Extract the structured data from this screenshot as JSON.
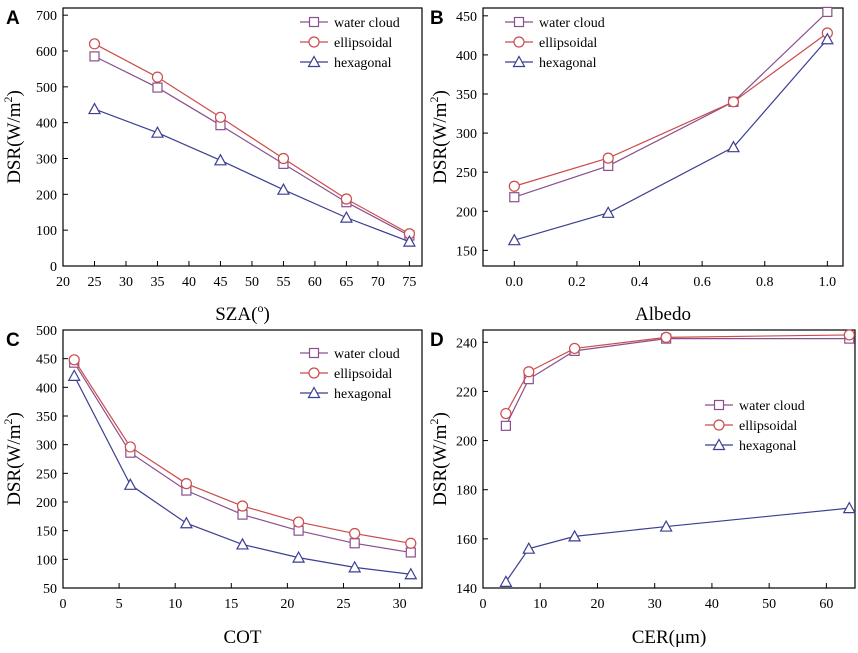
{
  "colors": {
    "water": "#8b4f8e",
    "ellipsoidal": "#cc4b4b",
    "hexagonal": "#3b3f91",
    "axis": "#000000"
  },
  "legend_labels": [
    "water cloud",
    "ellipsoidal",
    "hexagonal"
  ],
  "chart_data": [
    {
      "panel": "A",
      "type": "line",
      "xlabel": "SZA",
      "xlabel_sup": "o",
      "ylabel": "DSR(W/m",
      "ylabel_sup": "2",
      "xlim": [
        20,
        77
      ],
      "ylim": [
        0,
        720
      ],
      "xticks": [
        20,
        25,
        30,
        35,
        40,
        45,
        50,
        55,
        60,
        65,
        70,
        75
      ],
      "yticks": [
        0,
        100,
        200,
        300,
        400,
        500,
        600,
        700
      ],
      "legend_position": "top-right",
      "x": [
        25,
        35,
        45,
        55,
        65,
        75
      ],
      "series": [
        {
          "name": "water cloud",
          "marker": "square",
          "values": [
            585,
            498,
            393,
            285,
            178,
            85
          ]
        },
        {
          "name": "ellipsoidal",
          "marker": "circle",
          "values": [
            620,
            527,
            415,
            300,
            187,
            90
          ]
        },
        {
          "name": "hexagonal",
          "marker": "triangle",
          "values": [
            438,
            372,
            295,
            213,
            135,
            68
          ]
        }
      ]
    },
    {
      "panel": "B",
      "type": "line",
      "xlabel": "Albedo",
      "ylabel": "DSR(W/m",
      "ylabel_sup": "2",
      "xlim": [
        -0.1,
        1.05
      ],
      "ylim": [
        130,
        460
      ],
      "xticks": [
        0.0,
        0.2,
        0.4,
        0.6,
        0.8,
        1.0
      ],
      "xtick_labels": [
        "0.0",
        "0.2",
        "0.4",
        "0.6",
        "0.8",
        "1.0"
      ],
      "yticks": [
        150,
        200,
        250,
        300,
        350,
        400,
        450
      ],
      "legend_position": "top-left",
      "x": [
        0.0,
        0.3,
        0.7,
        1.0
      ],
      "series": [
        {
          "name": "water cloud",
          "marker": "square",
          "values": [
            218,
            258,
            340,
            455
          ]
        },
        {
          "name": "ellipsoidal",
          "marker": "circle",
          "values": [
            232,
            268,
            340,
            428
          ]
        },
        {
          "name": "hexagonal",
          "marker": "triangle",
          "values": [
            163,
            198,
            282,
            420
          ]
        }
      ]
    },
    {
      "panel": "C",
      "type": "line",
      "xlabel": "COT",
      "ylabel": "DSR(W/m",
      "ylabel_sup": "2",
      "xlim": [
        0,
        32
      ],
      "ylim": [
        50,
        500
      ],
      "xticks": [
        0,
        5,
        10,
        15,
        20,
        25,
        30
      ],
      "yticks": [
        50,
        100,
        150,
        200,
        250,
        300,
        350,
        400,
        450,
        500
      ],
      "legend_position": "top-right",
      "x": [
        1,
        6,
        11,
        16,
        21,
        26,
        31
      ],
      "series": [
        {
          "name": "water cloud",
          "marker": "square",
          "values": [
            443,
            286,
            220,
            178,
            150,
            128,
            112
          ]
        },
        {
          "name": "ellipsoidal",
          "marker": "circle",
          "values": [
            448,
            296,
            232,
            193,
            165,
            145,
            128
          ]
        },
        {
          "name": "hexagonal",
          "marker": "triangle",
          "values": [
            420,
            230,
            163,
            126,
            103,
            86,
            74
          ]
        }
      ]
    },
    {
      "panel": "D",
      "type": "line",
      "xlabel": "CER(μm)",
      "ylabel": "DSR(W/m",
      "ylabel_sup": "2",
      "xlim": [
        0,
        65
      ],
      "ylim": [
        140,
        245
      ],
      "xticks": [
        0,
        10,
        20,
        30,
        40,
        50,
        60
      ],
      "yticks": [
        140,
        160,
        180,
        200,
        220,
        240
      ],
      "legend_position": "middle-right",
      "x": [
        4,
        8,
        16,
        32,
        64
      ],
      "series": [
        {
          "name": "water cloud",
          "marker": "square",
          "values": [
            206,
            225,
            236.5,
            241.5,
            241.5
          ]
        },
        {
          "name": "ellipsoidal",
          "marker": "circle",
          "values": [
            211,
            228,
            237.5,
            242,
            243
          ]
        },
        {
          "name": "hexagonal",
          "marker": "triangle",
          "values": [
            142.5,
            156,
            161,
            165,
            172.5
          ]
        }
      ]
    }
  ]
}
